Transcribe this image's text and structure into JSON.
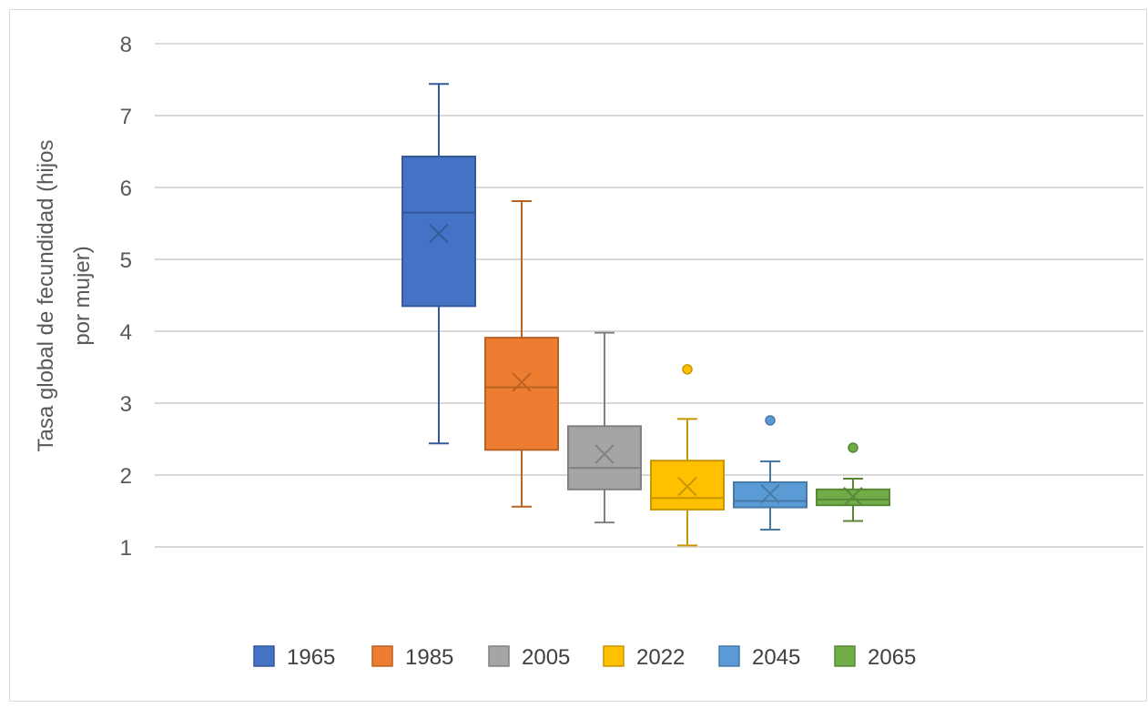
{
  "chart_data": {
    "type": "box",
    "title": "",
    "xlabel": "",
    "ylabel_lines": [
      "Tasa global de fecundidad (hijos",
      "por mujer)"
    ],
    "ylim": [
      1,
      8
    ],
    "yticks": [
      1,
      2,
      3,
      4,
      5,
      6,
      7,
      8
    ],
    "grid": true,
    "legend_position": "bottom",
    "series": [
      {
        "name": "1965",
        "color": "#4472C4",
        "min": 2.44,
        "q1": 4.35,
        "median": 5.65,
        "q3": 6.43,
        "max": 7.44,
        "mean": 5.36,
        "outliers": []
      },
      {
        "name": "1985",
        "color": "#ED7D31",
        "min": 1.56,
        "q1": 2.35,
        "median": 3.22,
        "q3": 3.91,
        "max": 5.81,
        "mean": 3.29,
        "outliers": []
      },
      {
        "name": "2005",
        "color": "#A5A5A5",
        "min": 1.34,
        "q1": 1.8,
        "median": 2.1,
        "q3": 2.68,
        "max": 3.98,
        "mean": 2.29,
        "outliers": []
      },
      {
        "name": "2022",
        "color": "#FFC000",
        "min": 1.02,
        "q1": 1.52,
        "median": 1.68,
        "q3": 2.2,
        "max": 2.78,
        "mean": 1.84,
        "outliers": [
          3.47
        ]
      },
      {
        "name": "2045",
        "color": "#5B9BD5",
        "min": 1.24,
        "q1": 1.55,
        "median": 1.64,
        "q3": 1.9,
        "max": 2.19,
        "mean": 1.74,
        "outliers": [
          2.76
        ]
      },
      {
        "name": "2065",
        "color": "#70AD47",
        "min": 1.36,
        "q1": 1.58,
        "median": 1.66,
        "q3": 1.8,
        "max": 1.95,
        "mean": 1.7,
        "outliers": [
          2.38
        ]
      }
    ]
  }
}
